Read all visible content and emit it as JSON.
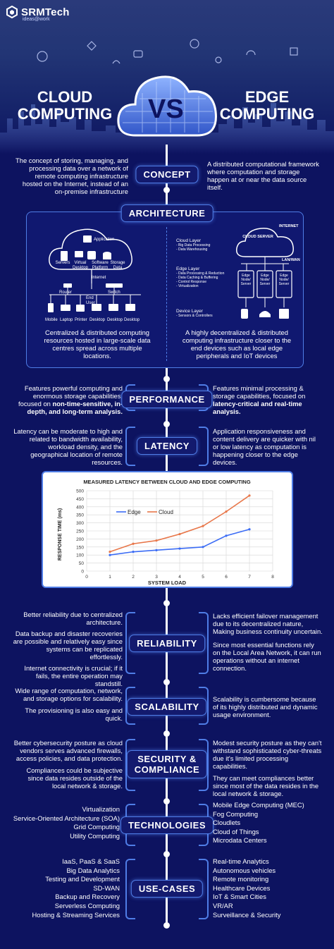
{
  "brand": {
    "name": "SRMTech",
    "tagline": "ideas@work"
  },
  "title": {
    "left_line1": "CLOUD",
    "left_line2": "COMPUTING",
    "vs": "VS",
    "right_line1": "EDGE",
    "right_line2": "COMPUTING"
  },
  "sections": {
    "concept": {
      "label": "CONCEPT",
      "left": "The concept of storing, managing, and processing data over a network of remote computing infrastructure hosted on the Internet, instead of an on-premise infrastructure",
      "right": "A distributed computational framework where computation and storage happen at or near the data source itself."
    },
    "architecture": {
      "label": "ARCHITECTURE",
      "cloud_diagram": {
        "application": "Application",
        "servers": "Servers",
        "virtual_desktop": "Virtual Desktop",
        "software_platform": "Software Platform",
        "storage_data": "Storage Data",
        "internet": "Internet",
        "router": "Router",
        "switch": "Switch",
        "end_user": "End User",
        "mobile": "Mobile",
        "laptop": "Laptop",
        "printer": "Printer",
        "desktop1": "Desktop",
        "desktop2": "Desktop",
        "desktop3": "Desktop"
      },
      "edge_diagram": {
        "internet": "INTERNET",
        "cloud_server": "CLOUD SERVER",
        "lan_wan": "LAN/WAN",
        "cloud_layer": "Cloud Layer",
        "cloud_layer_items": [
          "- Big Data Processing",
          "- Data Warehousing"
        ],
        "edge_layer": "Edge Layer",
        "edge_layer_items": [
          "- Data Processing & Reduction",
          "- Data Caching & Buffering",
          "- Control Response",
          "- Virtualization"
        ],
        "device_layer": "Device Layer",
        "device_layer_items": [
          "- Sensors & Controllers"
        ],
        "edge_node": "Edge Node/ Server"
      },
      "left": "Centralized & distributed computing resources hosted in large-scale data centres spread across multiple locations.",
      "right": "A highly decentralized & distributed computing infrastructure closer to the end devices such as local edge peripherals and IoT devices"
    },
    "performance": {
      "label": "PERFORMANCE",
      "left_plain": "Features powerful computing and enormous storage capabilities, focused on ",
      "left_bold": "non-time-sensitive, in-depth, and long-term analysis.",
      "right_plain": "Features minimal processing & storage capabilities, focused on ",
      "right_bold": "latency-critical and real-time analysis."
    },
    "latency": {
      "label": "LATENCY",
      "left": "Latency can be moderate to high and related to bandwidth availability, workload density, and the geographical location of remote resources.",
      "right": "Application responsiveness and content delivery are quicker with nil or low latency as computation is happening closer to the edge devices."
    },
    "reliability": {
      "label": "RELIABILITY",
      "left": [
        "Better reliability due to centralized architecture.",
        "Data backup and disaster recoveries are possible and relatively easy since systems can be replicated effortlessly.",
        "Internet connectivity is crucial; if it fails, the entire operation may standstill."
      ],
      "right": [
        "Lacks efficient failover management due to its decentralized nature, Making business continuity uncertain.",
        "Since most essential functions rely on the Local Area Network, it can run operations without an internet connection."
      ]
    },
    "scalability": {
      "label": "SCALABILITY",
      "left": [
        "Wide range of computation, network, and storage options for scalability.",
        "The provisioning is also easy and quick."
      ],
      "right": [
        "Scalability is cumbersome because of its highly distributed and dynamic usage environment."
      ]
    },
    "security": {
      "label_line1": "SECURITY &",
      "label_line2": "COMPLIANCE",
      "left": [
        "Better cybersecurity posture as cloud vendors serves advanced firewalls, access policies, and data protection.",
        "Compliances could be subjective since data resides outside of the local network & storage."
      ],
      "right": [
        "Modest security posture as they can't withstand sophisticated cyber-threats due it's limited processing capabilities.",
        "They can meet compliances better since most of the data resides in the local network & storage."
      ]
    },
    "technologies": {
      "label": "TECHNOLOGIES",
      "left": [
        "Virtualization",
        "Service-Oriented Architecture (SOA)",
        "Grid Computing",
        "Utility Computing"
      ],
      "right": [
        "Mobile Edge Computing (MEC)",
        "Fog Computing",
        "Cloudlets",
        "Cloud of Things",
        "Microdata Centers"
      ]
    },
    "use_cases": {
      "label": "USE-CASES",
      "left": [
        "IaaS, PaaS & SaaS",
        "Big Data Analytics",
        "Testing and Development",
        "SD-WAN",
        "Backup and Recovery",
        "Serverless Computing",
        "Hosting & Streaming Services"
      ],
      "right": [
        "Real-time Analytics",
        "Autonomous vehicles",
        "Remote monitoring",
        "Healthcare Devices",
        "IoT & Smart Cities",
        "VR/AR",
        "Surveillance & Security"
      ]
    }
  },
  "chart_data": {
    "type": "line",
    "title": "MEASURED LATENCY BETWEEN CLOUD AND EDGE COMPUTING",
    "xlabel": "SYSTEM LOAD",
    "ylabel": "RESPONSE TIME (ms)",
    "x": [
      1,
      2,
      3,
      4,
      5,
      6,
      7
    ],
    "xlim": [
      0,
      8
    ],
    "ylim": [
      0,
      500
    ],
    "xticks": [
      0,
      1,
      2,
      3,
      4,
      5,
      6,
      7,
      8
    ],
    "yticks": [
      0,
      50,
      100,
      150,
      200,
      250,
      300,
      350,
      400,
      450,
      500
    ],
    "grid": true,
    "legend": "top-left",
    "series": [
      {
        "name": "Edge",
        "color": "#3b6cf5",
        "values": [
          100,
          120,
          130,
          140,
          150,
          220,
          260
        ]
      },
      {
        "name": "Cloud",
        "color": "#e8774a",
        "values": [
          120,
          170,
          190,
          230,
          280,
          370,
          470
        ]
      }
    ]
  },
  "colors": {
    "background": "#0d1360",
    "accent": "#4f7de6",
    "edge": "#3b6cf5",
    "cloud": "#e8774a"
  }
}
